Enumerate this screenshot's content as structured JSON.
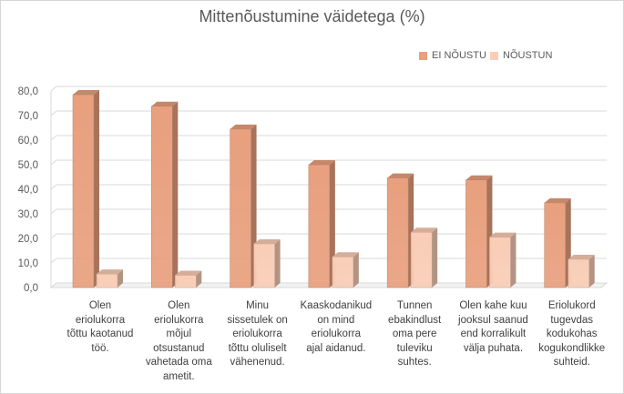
{
  "chart_data": {
    "type": "bar",
    "title": "Mittenõustumine väidetega (%)",
    "categories": [
      [
        "Olen",
        "eriolukorra",
        "tõttu kaotanud",
        "töö."
      ],
      [
        "Olen",
        "eriolukorra",
        "mõjul",
        "otsustanud",
        "vahetada oma",
        "ametit."
      ],
      [
        "Minu",
        "sissetulek on",
        "eriolukorra",
        "tõttu oluliselt",
        "vähenenud."
      ],
      [
        "Kaaskodanikud",
        "on mind",
        "eriolukorra",
        "ajal aidanud."
      ],
      [
        "Tunnen",
        "ebakindlust",
        "oma pere",
        "tuleviku",
        "suhtes."
      ],
      [
        "Olen kahe kuu",
        "jooksul saanud",
        "end korralikult",
        "välja puhata."
      ],
      [
        "Eriolukord",
        "tugevdas",
        "kodukohas",
        "kogukondlikke",
        "suhteid."
      ]
    ],
    "series": [
      {
        "name": "EI NÕUSTU",
        "color": "#e8a07e",
        "values": [
          78.5,
          73.8,
          64.5,
          50.0,
          44.6,
          43.8,
          34.5
        ]
      },
      {
        "name": "NÕUSTUN",
        "color": "#f9cdb6",
        "values": [
          5.5,
          5.0,
          17.8,
          12.5,
          22.5,
          20.5,
          11.5
        ]
      }
    ],
    "ylim": [
      0,
      80
    ],
    "yticks": [
      "0,0",
      "10,0",
      "20,0",
      "30,0",
      "40,0",
      "50,0",
      "60,0",
      "70,0",
      "80,0"
    ],
    "legend_position": "top-right",
    "grid": true
  }
}
